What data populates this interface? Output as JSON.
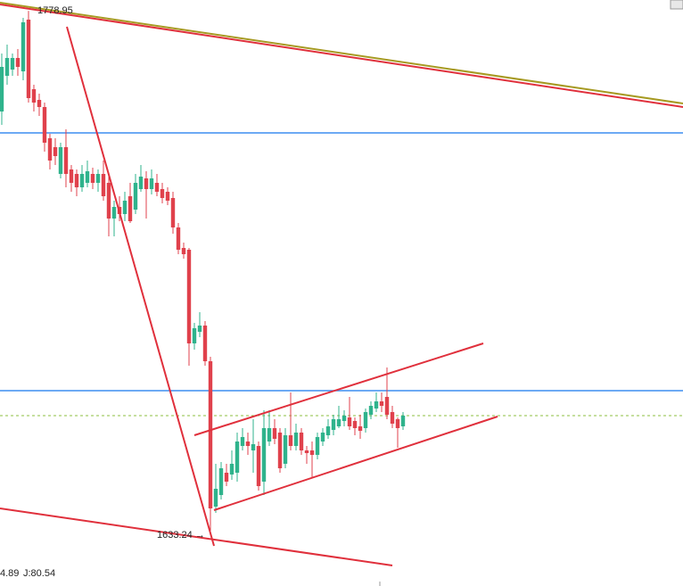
{
  "chart_data": {
    "type": "candlestick",
    "up_color": "#2fb38c",
    "down_color": "#e0414c",
    "ylim": [
      1617.75,
      1782
    ],
    "xlim": [
      -0.33,
      127.33
    ],
    "open": [
      1750.75,
      1760.75,
      1762.5,
      1765.75,
      1762,
      1776.5,
      1757,
      1754,
      1752,
      1743.25,
      1740.75,
      1733.25,
      1740.75,
      1734.5,
      1733.25,
      1729.5,
      1730.75,
      1733.25,
      1730.75,
      1733.25,
      1730.75,
      1720.75,
      1724,
      1722,
      1727,
      1723.25,
      1729,
      1732,
      1729,
      1730.75,
      1729,
      1728.25,
      1726.5,
      1718.25,
      1712.5,
      1712,
      1685.75,
      1689,
      1690.75,
      1680.75,
      1640,
      1643.25,
      1649.5,
      1649,
      1649.5,
      1657,
      1658.25,
      1655.75,
      1657,
      1647,
      1658.25,
      1662,
      1660.75,
      1652,
      1660,
      1657,
      1660.75,
      1655.75,
      1655.75,
      1654.5,
      1658.25,
      1660,
      1661.5,
      1662.5,
      1664,
      1665,
      1664,
      1662.5,
      1662,
      1665.75,
      1667.5,
      1669.5,
      1670.75,
      1666.5,
      1664.5,
      1662.5
    ],
    "high": [
      1767,
      1769.5,
      1767,
      1768.25,
      1777,
      1778.95,
      1758.25,
      1755.75,
      1753.25,
      1744.5,
      1743.25,
      1742,
      1745.75,
      1735.75,
      1734.5,
      1735.75,
      1737,
      1735,
      1734.5,
      1737,
      1733.25,
      1725.75,
      1727,
      1728.25,
      1730.75,
      1733.25,
      1735.75,
      1734,
      1734.5,
      1733.25,
      1730.75,
      1729.5,
      1728.25,
      1719.5,
      1714,
      1712.5,
      1691.5,
      1694.5,
      1692,
      1682,
      1652,
      1652.5,
      1652,
      1655.75,
      1660.75,
      1662,
      1660.75,
      1664.5,
      1658.25,
      1667,
      1667,
      1664.5,
      1662,
      1662,
      1672,
      1663.25,
      1662,
      1657,
      1658.25,
      1660.75,
      1662,
      1664.5,
      1665.75,
      1668.25,
      1667,
      1670.75,
      1665,
      1665.75,
      1667.5,
      1669.5,
      1672,
      1672,
      1679,
      1668.25,
      1665,
      1666.5
    ],
    "low": [
      1747,
      1758.25,
      1760.75,
      1760.75,
      1759.5,
      1753.25,
      1750.75,
      1749.5,
      1739.5,
      1734.5,
      1735.75,
      1732,
      1729.5,
      1728.25,
      1727,
      1728.25,
      1729.5,
      1729,
      1728.25,
      1725.75,
      1715.75,
      1715.75,
      1720,
      1720,
      1719.5,
      1722,
      1728.25,
      1720.75,
      1727.5,
      1727,
      1725,
      1724.5,
      1716.5,
      1710.75,
      1709.5,
      1679.5,
      1684,
      1687.5,
      1679.5,
      1633.24,
      1638.25,
      1642,
      1645.75,
      1647.5,
      1647,
      1655.75,
      1654.5,
      1649.5,
      1644.5,
      1643.25,
      1657,
      1657.5,
      1649.5,
      1650.75,
      1655.75,
      1655.75,
      1654.5,
      1652,
      1648.25,
      1653.25,
      1657,
      1659,
      1660,
      1662,
      1662.5,
      1661.5,
      1660,
      1659,
      1660.75,
      1664.5,
      1666.5,
      1666.5,
      1664.5,
      1662,
      1656.5,
      1661.5
    ],
    "close": [
      1763.25,
      1765.75,
      1765.75,
      1763.25,
      1775.75,
      1754.5,
      1753.25,
      1752,
      1742,
      1737,
      1738.25,
      1740.75,
      1733.25,
      1730.75,
      1729.5,
      1733.25,
      1734,
      1730.75,
      1733.25,
      1727,
      1720.75,
      1724,
      1722,
      1725.75,
      1720,
      1730.75,
      1732.5,
      1729,
      1732,
      1728.25,
      1726.5,
      1725.75,
      1718.25,
      1712,
      1710.75,
      1685.75,
      1690,
      1690.75,
      1680.75,
      1639.5,
      1645,
      1650.75,
      1647,
      1652,
      1658.25,
      1659.5,
      1657,
      1657.5,
      1645.75,
      1662,
      1662,
      1659,
      1650.75,
      1660,
      1657,
      1660.75,
      1655.75,
      1655,
      1654.5,
      1659.5,
      1660.75,
      1662.5,
      1664.5,
      1664.5,
      1665.5,
      1662.5,
      1662,
      1661.25,
      1666.5,
      1668.25,
      1669.5,
      1668.25,
      1665.75,
      1663.25,
      1662,
      1665.5
    ],
    "hlines": [
      {
        "value": 1744.75,
        "color": "#3d8ef0",
        "dashed": false
      },
      {
        "value": 1672.5,
        "color": "#3d8ef0",
        "dashed": false
      },
      {
        "value": 1665.5,
        "color": "#8cbf3f",
        "dashed": true
      }
    ],
    "lines": [
      {
        "color": "#a69a22",
        "x": [
          -0.33,
          127.33
        ],
        "y": [
          1781.25,
          1753
        ]
      },
      {
        "color": "#e0303c",
        "x": [
          -0.33,
          127.33
        ],
        "y": [
          1780.75,
          1752
        ]
      },
      {
        "color": "#e0303c",
        "x": [
          12.17,
          39.67
        ],
        "y": [
          1774.5,
          1629
        ]
      },
      {
        "color": "#e0303c",
        "x": [
          -0.33,
          73
        ],
        "y": [
          1639.5,
          1623.5
        ]
      },
      {
        "color": "#e0303c",
        "x": [
          36,
          90
        ],
        "y": [
          1660,
          1685.75
        ]
      },
      {
        "color": "#e0303c",
        "x": [
          39.67,
          92.67
        ],
        "y": [
          1639,
          1665.25
        ]
      }
    ],
    "annotations": [
      "1778.95",
      "1633.24 →"
    ],
    "indicator_labels": [
      {
        "text": "4.89",
        "color": "#e6a100"
      },
      {
        "text": "J:80.54",
        "color": "#d03cc8"
      }
    ]
  }
}
